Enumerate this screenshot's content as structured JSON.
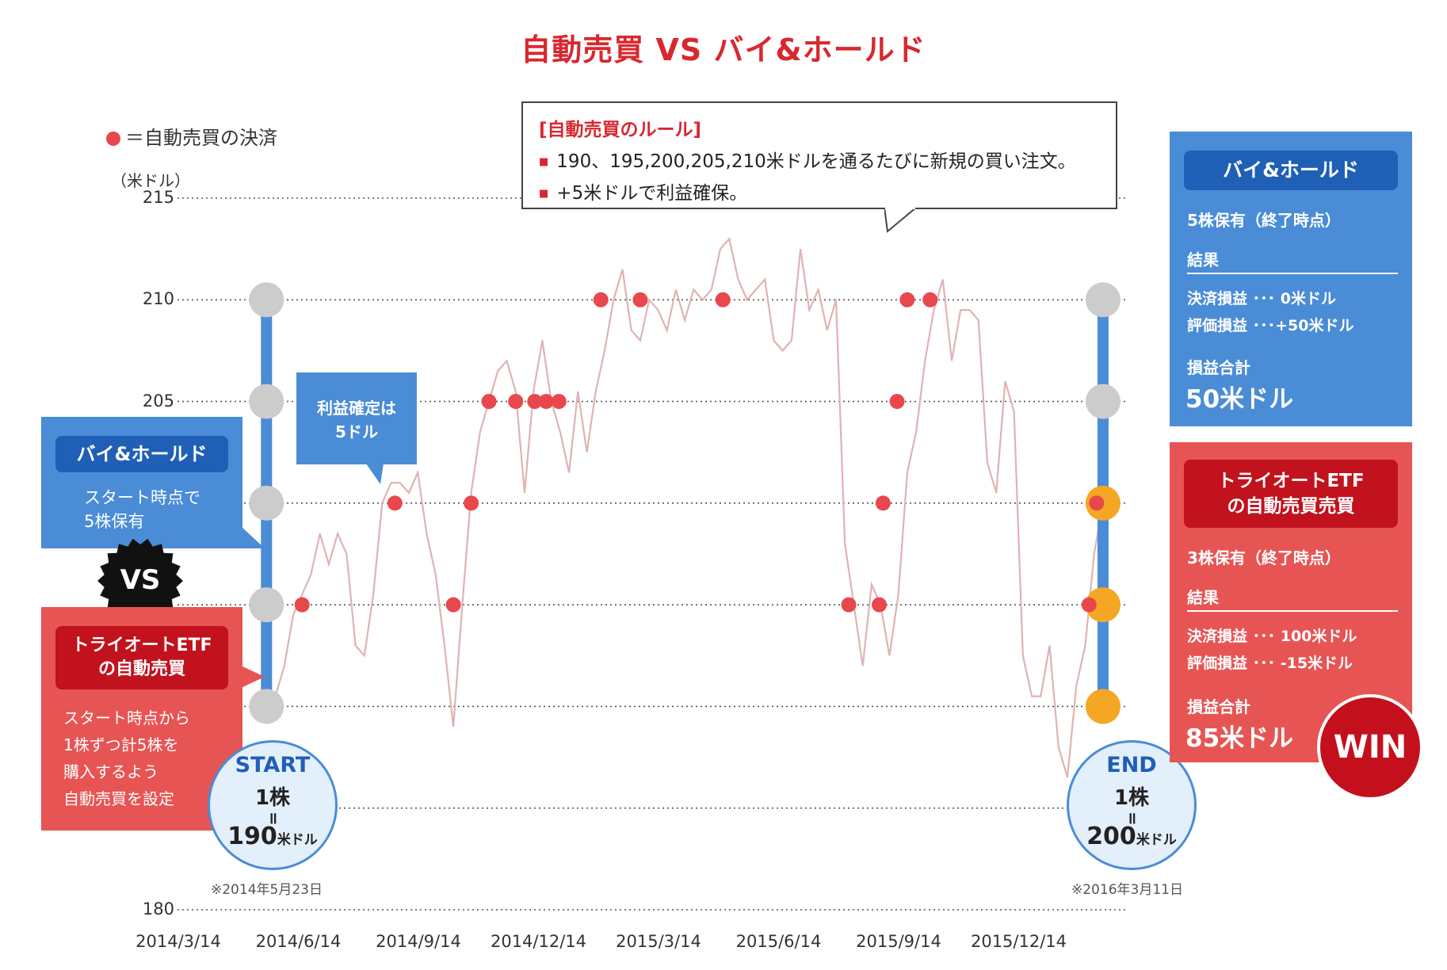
{
  "title": "自動売買 VS バイ&ホールド",
  "legend": "＝自動売買の決済",
  "rule_box": {
    "title": "[自動売買のルール]",
    "items": [
      "190、195,200,205,210米ドルを通るたびに新規の買い注文。",
      "+5米ドルで利益確保。"
    ]
  },
  "profit_callout": [
    "利益確定は",
    "5ドル"
  ],
  "buy_hold_left": {
    "badge": "バイ&ホールド",
    "text": [
      "スタート時点で",
      "5株保有"
    ]
  },
  "vs": "VS",
  "auto_left": {
    "badge": [
      "トライオートETF",
      "の自動売買"
    ],
    "text": [
      "スタート時点から",
      "1株ずつ計5株を",
      "購入するよう",
      "自動売買を設定"
    ]
  },
  "start": {
    "label": "START",
    "shares": "1株",
    "eq": "॥",
    "price": "190",
    "unit": "米ドル",
    "date": "※2014年5月23日"
  },
  "end": {
    "label": "END",
    "shares": "1株",
    "eq": "॥",
    "price": "200",
    "unit": "米ドル",
    "date": "※2016年3月11日"
  },
  "buy_hold_right": {
    "badge": "バイ&ホールド",
    "holding": "5株保有（終了時点）",
    "result": "結果",
    "settled": "決済損益 ･･･ 0米ドル",
    "unrealized": "評価損益 ･･･+50米ドル",
    "total_label": "損益合計",
    "total": "50米ドル"
  },
  "auto_right": {
    "badge": [
      "トライオートETF",
      "の自動売買売買"
    ],
    "holding": "3株保有（終了時点）",
    "result": "結果",
    "settled": "決済損益 ･･･ 100米ドル",
    "unrealized": "評価損益 ･･･ -15米ドル",
    "total_label": "損益合計",
    "total": "85米ドル",
    "win": "WIN"
  },
  "colors": {
    "red": "#d8282f",
    "blue": "#4a8cd6",
    "price_line": "#e0b3b3",
    "dot": "#e8474c",
    "orange": "#f5a623",
    "grey": "#cccccc"
  },
  "chart_data": {
    "type": "line",
    "ylabel": "（米ドル）",
    "ylim": [
      180,
      215
    ],
    "yticks": [
      {
        "value": 215,
        "label": "215"
      },
      {
        "value": 210,
        "label": "210"
      },
      {
        "value": 205,
        "label": "205"
      },
      {
        "value": 200,
        "label": ""
      },
      {
        "value": 195,
        "label": ""
      },
      {
        "value": 190,
        "label": ""
      },
      {
        "value": 185,
        "label": ""
      },
      {
        "value": 180,
        "label": "180"
      }
    ],
    "xticks": [
      "2014/3/14",
      "2014/6/14",
      "2014/9/14",
      "2014/12/14",
      "2015/3/14",
      "2015/6/14",
      "2015/9/14",
      "2015/12/14"
    ],
    "x_range": [
      "2014-03-14",
      "2016-03-31"
    ],
    "series": [
      {
        "values": [
          [
            "2014-05-23",
            189.5
          ],
          [
            "2014-05-30",
            190.5
          ],
          [
            "2014-06-06",
            192
          ],
          [
            "2014-06-13",
            194.5
          ],
          [
            "2014-06-20",
            195.5
          ],
          [
            "2014-06-27",
            196.5
          ],
          [
            "2014-07-04",
            198.5
          ],
          [
            "2014-07-11",
            197
          ],
          [
            "2014-07-18",
            198.5
          ],
          [
            "2014-07-25",
            197.5
          ],
          [
            "2014-08-01",
            193
          ],
          [
            "2014-08-08",
            192.5
          ],
          [
            "2014-08-15",
            195.5
          ],
          [
            "2014-08-22",
            200
          ],
          [
            "2014-08-29",
            201
          ],
          [
            "2014-09-05",
            201
          ],
          [
            "2014-09-12",
            200.5
          ],
          [
            "2014-09-19",
            201.5
          ],
          [
            "2014-09-26",
            198.5
          ],
          [
            "2014-10-03",
            196.5
          ],
          [
            "2014-10-10",
            193
          ],
          [
            "2014-10-17",
            189
          ],
          [
            "2014-10-24",
            195
          ],
          [
            "2014-10-31",
            200.5
          ],
          [
            "2014-11-07",
            203.5
          ],
          [
            "2014-11-14",
            205
          ],
          [
            "2014-11-21",
            206.5
          ],
          [
            "2014-11-28",
            207
          ],
          [
            "2014-12-05",
            205.5
          ],
          [
            "2014-12-12",
            200.5
          ],
          [
            "2014-12-19",
            205.5
          ],
          [
            "2014-12-26",
            208
          ],
          [
            "2015-01-02",
            205
          ],
          [
            "2015-01-09",
            203.5
          ],
          [
            "2015-01-16",
            201.5
          ],
          [
            "2015-01-23",
            205.5
          ],
          [
            "2015-01-30",
            202.5
          ],
          [
            "2015-02-06",
            205.5
          ],
          [
            "2015-02-13",
            207.5
          ],
          [
            "2015-02-20",
            210
          ],
          [
            "2015-02-27",
            211.5
          ],
          [
            "2015-03-06",
            208.5
          ],
          [
            "2015-03-13",
            208
          ],
          [
            "2015-03-20",
            210
          ],
          [
            "2015-03-27",
            209.5
          ],
          [
            "2015-04-03",
            208.5
          ],
          [
            "2015-04-10",
            210.5
          ],
          [
            "2015-04-17",
            209
          ],
          [
            "2015-04-24",
            210.5
          ],
          [
            "2015-05-01",
            210
          ],
          [
            "2015-05-08",
            210.5
          ],
          [
            "2015-05-15",
            212.5
          ],
          [
            "2015-05-22",
            213
          ],
          [
            "2015-05-29",
            211
          ],
          [
            "2015-06-05",
            210
          ],
          [
            "2015-06-12",
            210.5
          ],
          [
            "2015-06-19",
            211
          ],
          [
            "2015-06-26",
            208
          ],
          [
            "2015-07-03",
            207.5
          ],
          [
            "2015-07-10",
            208
          ],
          [
            "2015-07-17",
            212.5
          ],
          [
            "2015-07-24",
            209.5
          ],
          [
            "2015-07-31",
            210.5
          ],
          [
            "2015-08-07",
            208.5
          ],
          [
            "2015-08-14",
            210
          ],
          [
            "2015-08-21",
            198
          ],
          [
            "2015-08-28",
            195
          ],
          [
            "2015-09-04",
            192
          ],
          [
            "2015-09-11",
            196
          ],
          [
            "2015-09-18",
            195
          ],
          [
            "2015-09-25",
            192.5
          ],
          [
            "2015-10-02",
            195.5
          ],
          [
            "2015-10-09",
            201.5
          ],
          [
            "2015-10-16",
            203.5
          ],
          [
            "2015-10-23",
            207
          ],
          [
            "2015-10-30",
            209.5
          ],
          [
            "2015-11-06",
            211
          ],
          [
            "2015-11-13",
            207
          ],
          [
            "2015-11-20",
            209.5
          ],
          [
            "2015-11-27",
            209.5
          ],
          [
            "2015-12-04",
            209
          ],
          [
            "2015-12-11",
            202
          ],
          [
            "2015-12-18",
            200.5
          ],
          [
            "2015-12-25",
            206
          ],
          [
            "2016-01-01",
            204.5
          ],
          [
            "2016-01-08",
            192.5
          ],
          [
            "2016-01-15",
            190.5
          ],
          [
            "2016-01-22",
            190.5
          ],
          [
            "2016-01-29",
            193
          ],
          [
            "2016-02-05",
            188
          ],
          [
            "2016-02-12",
            186.5
          ],
          [
            "2016-02-19",
            191
          ],
          [
            "2016-02-26",
            193
          ],
          [
            "2016-03-04",
            197.5
          ],
          [
            "2016-03-11",
            200
          ]
        ]
      }
    ],
    "settlements": [
      [
        "2014-06-20",
        195
      ],
      [
        "2014-09-01",
        200
      ],
      [
        "2014-10-17",
        195
      ],
      [
        "2014-10-31",
        200
      ],
      [
        "2014-11-14",
        205
      ],
      [
        "2014-12-05",
        205
      ],
      [
        "2014-12-20",
        205
      ],
      [
        "2014-12-29",
        205
      ],
      [
        "2015-01-08",
        205
      ],
      [
        "2015-02-10",
        210
      ],
      [
        "2015-03-13",
        210
      ],
      [
        "2015-05-17",
        210
      ],
      [
        "2015-08-24",
        195
      ],
      [
        "2015-09-17",
        195
      ],
      [
        "2015-09-20",
        200
      ],
      [
        "2015-10-01",
        205
      ],
      [
        "2015-10-09",
        210
      ],
      [
        "2015-10-27",
        210
      ],
      [
        "2016-02-29",
        195
      ],
      [
        "2016-03-06",
        200
      ]
    ]
  }
}
